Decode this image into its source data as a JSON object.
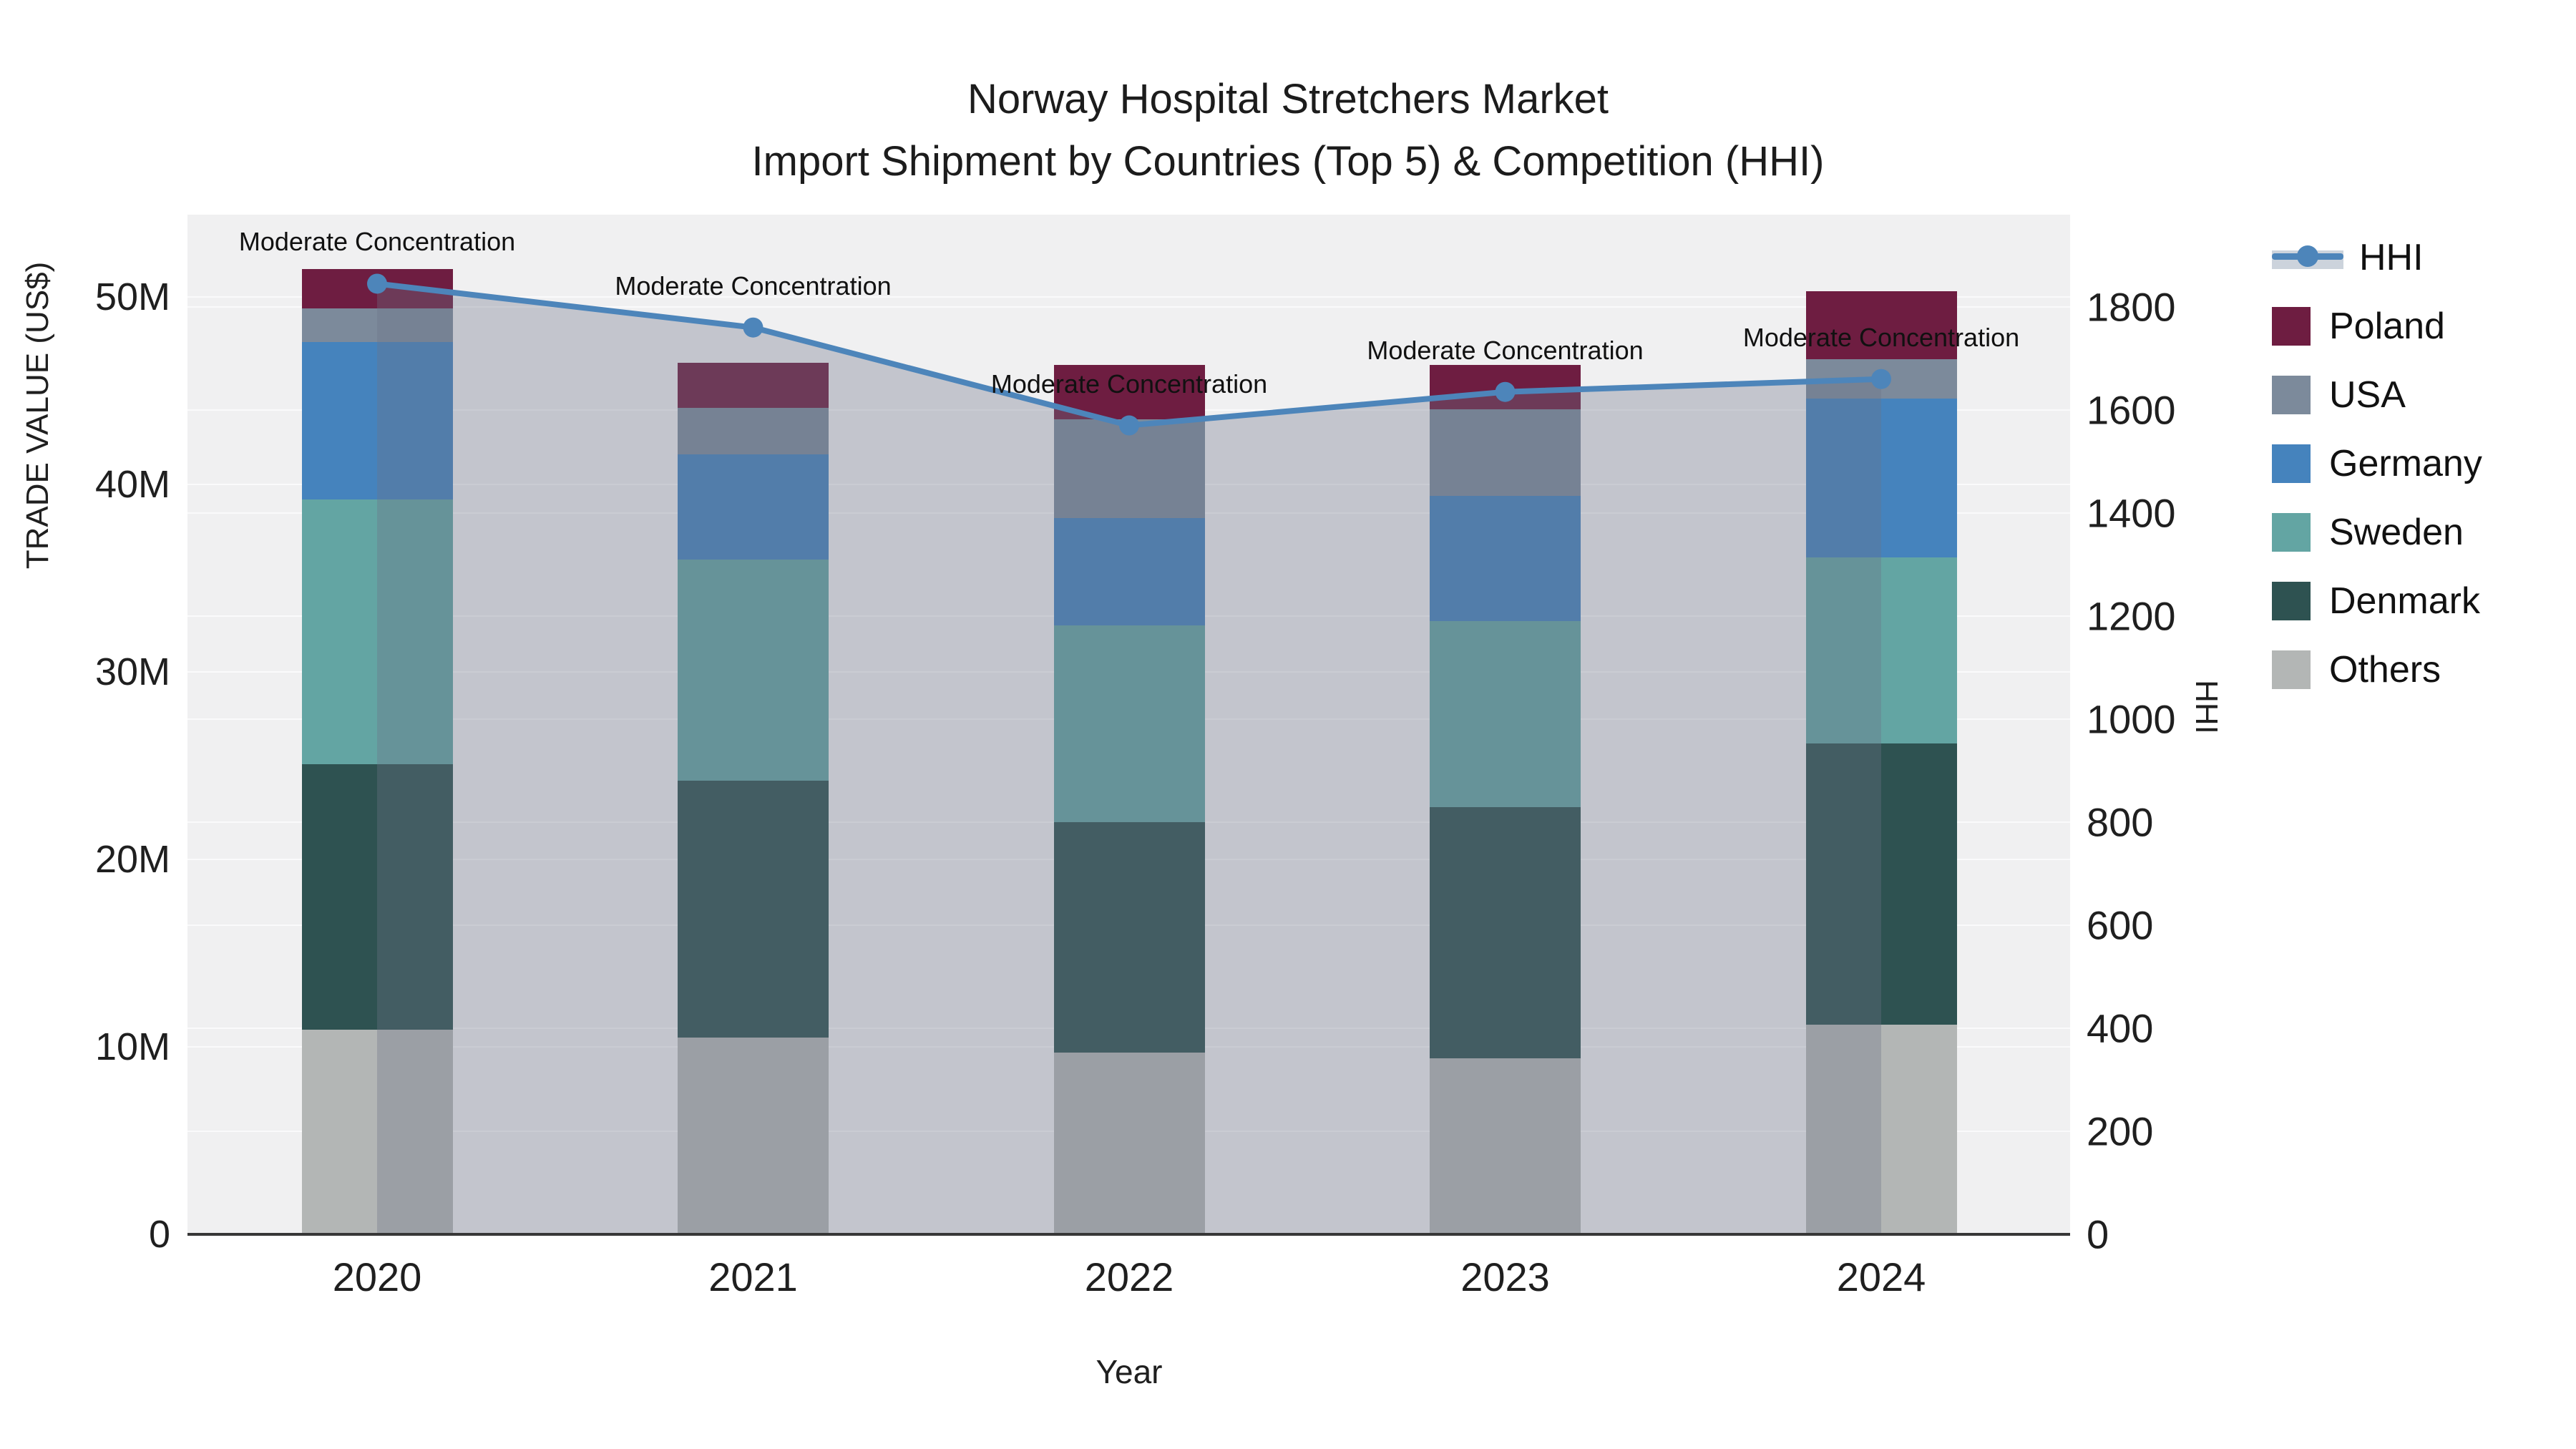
{
  "title": {
    "line1": "Norway Hospital Stretchers Market",
    "line2": "Import Shipment by Countries (Top 5) & Competition (HHI)"
  },
  "axes": {
    "y_left": {
      "title": "TRADE VALUE (US$)",
      "ticks": [
        {
          "label": "0",
          "value": 0
        },
        {
          "label": "10M",
          "value": 10
        },
        {
          "label": "20M",
          "value": 20
        },
        {
          "label": "30M",
          "value": 30
        },
        {
          "label": "40M",
          "value": 40
        },
        {
          "label": "50M",
          "value": 50
        }
      ],
      "range": [
        0,
        54.4
      ]
    },
    "y_right": {
      "title": "HHI",
      "ticks": [
        {
          "label": "0",
          "value": 0
        },
        {
          "label": "200",
          "value": 200
        },
        {
          "label": "400",
          "value": 400
        },
        {
          "label": "600",
          "value": 600
        },
        {
          "label": "800",
          "value": 800
        },
        {
          "label": "1000",
          "value": 1000
        },
        {
          "label": "1200",
          "value": 1200
        },
        {
          "label": "1400",
          "value": 1400
        },
        {
          "label": "1600",
          "value": 1600
        },
        {
          "label": "1800",
          "value": 1800
        }
      ],
      "range": [
        0,
        1979
      ]
    },
    "x": {
      "title": "Year",
      "categories": [
        "2020",
        "2021",
        "2022",
        "2023",
        "2024"
      ]
    }
  },
  "chart_data": {
    "type": "combo-stacked-bar-line",
    "categories": [
      "2020",
      "2021",
      "2022",
      "2023",
      "2024"
    ],
    "bar_value_unit": "million US$",
    "stack_order_bottom_to_top": [
      "Others",
      "Denmark",
      "Sweden",
      "Germany",
      "USA",
      "Poland"
    ],
    "series": [
      {
        "name": "Poland",
        "color": "#6e1d41",
        "values": [
          2.1,
          2.4,
          2.9,
          2.4,
          3.6
        ]
      },
      {
        "name": "USA",
        "color": "#7c8a9b",
        "values": [
          1.8,
          2.5,
          5.3,
          4.6,
          2.1
        ]
      },
      {
        "name": "Germany",
        "color": "#4583bd",
        "values": [
          8.4,
          5.6,
          5.7,
          6.7,
          8.5
        ]
      },
      {
        "name": "Sweden",
        "color": "#63a5a3",
        "values": [
          14.1,
          11.8,
          10.5,
          9.9,
          9.9
        ]
      },
      {
        "name": "Denmark",
        "color": "#2e5251",
        "values": [
          14.2,
          13.7,
          12.3,
          13.4,
          15.0
        ]
      },
      {
        "name": "Others",
        "color": "#b3b6b5",
        "values": [
          10.9,
          10.5,
          9.7,
          9.4,
          11.2
        ]
      }
    ],
    "bar_totals": [
      51.5,
      46.5,
      46.4,
      46.4,
      50.3
    ],
    "line": {
      "name": "HHI",
      "color": "#4d85ba",
      "area_fill_color": "rgba(108,114,134,0.34)",
      "values": [
        1845,
        1760,
        1570,
        1635,
        1660
      ]
    },
    "annotations": [
      {
        "text": "Moderate Concentration",
        "category": "2020"
      },
      {
        "text": "Moderate Concentration",
        "category": "2021"
      },
      {
        "text": "Moderate Concentration",
        "category": "2022"
      },
      {
        "text": "Moderate Concentration",
        "category": "2023"
      },
      {
        "text": "Moderate Concentration",
        "category": "2024"
      }
    ],
    "legend_position": "right",
    "grid": true,
    "plot_background": "#f0f0f1"
  },
  "legend": {
    "items": [
      {
        "label": "HHI",
        "color": "#4d85ba",
        "kind": "line"
      },
      {
        "label": "Poland",
        "color": "#6e1d41",
        "kind": "square"
      },
      {
        "label": "USA",
        "color": "#7c8a9b",
        "kind": "square"
      },
      {
        "label": "Germany",
        "color": "#4583bd",
        "kind": "square"
      },
      {
        "label": "Sweden",
        "color": "#63a5a3",
        "kind": "square"
      },
      {
        "label": "Denmark",
        "color": "#2e5251",
        "kind": "square"
      },
      {
        "label": "Others",
        "color": "#b3b6b5",
        "kind": "square"
      }
    ]
  }
}
